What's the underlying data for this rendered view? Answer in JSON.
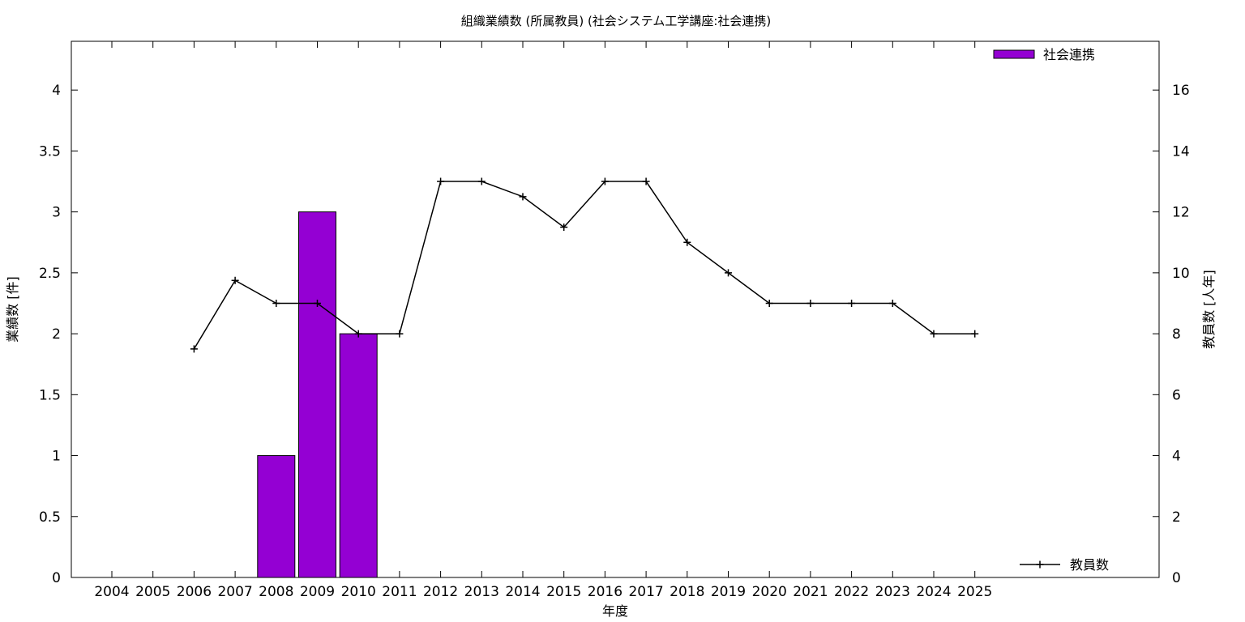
{
  "chart_data": {
    "type": "bar",
    "title": "組織業績数 (所属教員) (社会システム工学講座:社会連携)",
    "xlabel": "年度",
    "ylabel": "業績数 [件]",
    "y2label": "教員数 [人年]",
    "categories": [
      "2004",
      "2005",
      "2006",
      "2007",
      "2008",
      "2009",
      "2010",
      "2011",
      "2012",
      "2013",
      "2014",
      "2015",
      "2016",
      "2017",
      "2018",
      "2019",
      "2020",
      "2021",
      "2022",
      "2023",
      "2024",
      "2025"
    ],
    "ylim": [
      0,
      4.4
    ],
    "yticks": [
      0,
      0.5,
      1,
      1.5,
      2,
      2.5,
      3,
      3.5,
      4
    ],
    "ytick_labels": [
      "0",
      "0.5",
      "1",
      "1.5",
      "2",
      "2.5",
      "3",
      "3.5",
      "4"
    ],
    "y2lim": [
      0,
      17.6
    ],
    "y2ticks": [
      0,
      2,
      4,
      6,
      8,
      10,
      12,
      14,
      16
    ],
    "y2tick_labels": [
      "0",
      "2",
      "4",
      "6",
      "8",
      "10",
      "12",
      "14",
      "16"
    ],
    "grid": false,
    "series": [
      {
        "name": "社会連携",
        "type": "bar",
        "axis": "left",
        "color": "#9400d3",
        "values": [
          null,
          null,
          null,
          null,
          1,
          3,
          2,
          null,
          null,
          null,
          null,
          null,
          null,
          null,
          null,
          null,
          null,
          null,
          null,
          null,
          null,
          null
        ]
      },
      {
        "name": "教員数",
        "type": "line",
        "axis": "right",
        "color": "#000000",
        "marker": "plus",
        "values": [
          null,
          null,
          7.5,
          9.75,
          9,
          9,
          8,
          8,
          13,
          13,
          12.5,
          11.5,
          13,
          13,
          11,
          10,
          9,
          9,
          9,
          9,
          8,
          8
        ]
      }
    ],
    "legend": [
      {
        "label": "社会連携",
        "symbol": "bar",
        "placement": "top-right"
      },
      {
        "label": "教員数",
        "symbol": "line",
        "placement": "bottom-right"
      }
    ]
  }
}
